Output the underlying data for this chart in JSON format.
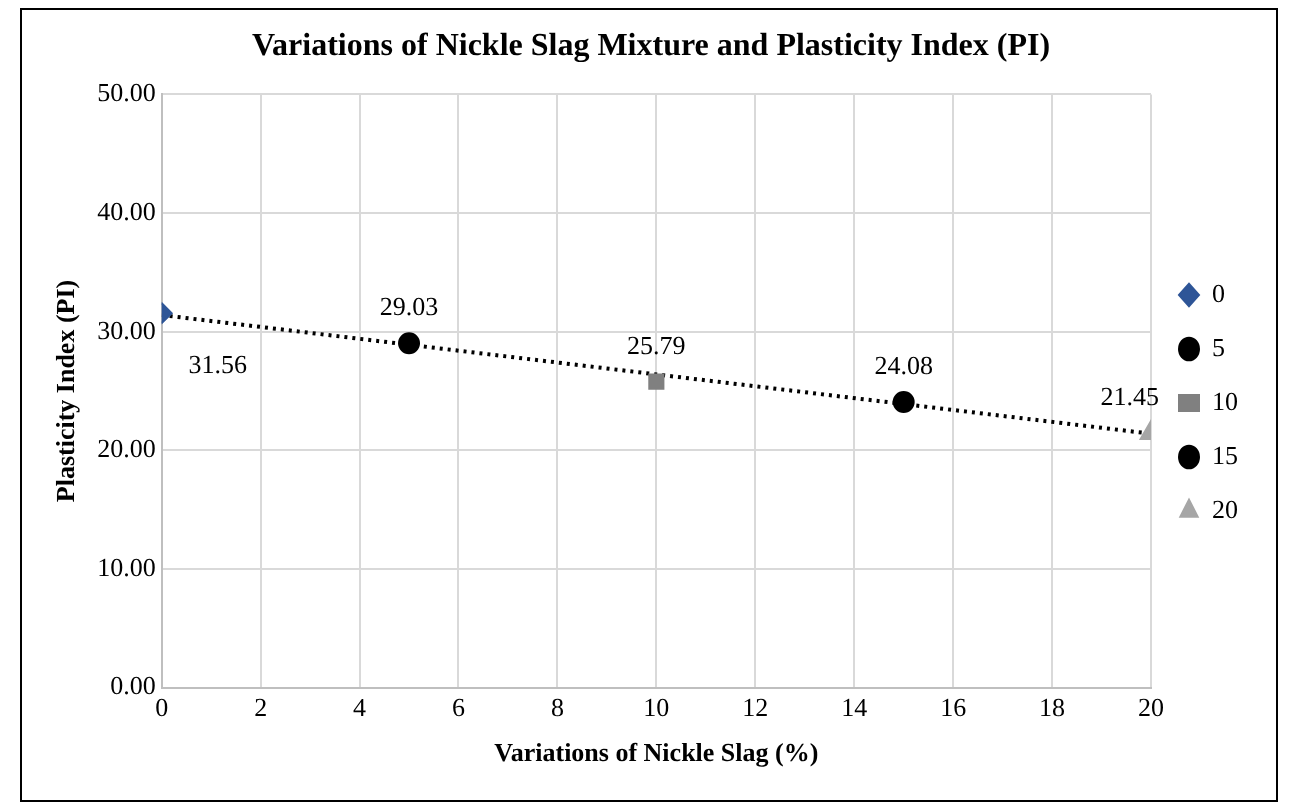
{
  "chart_data": {
    "type": "scatter",
    "title": "Variations of Nickle Slag Mixture and Plasticity Index (PI)",
    "xlabel": "Variations of Nickle Slag (%)",
    "ylabel": "Plasticity Index (PI)",
    "xlim": [
      0,
      20
    ],
    "xticks": [
      0,
      2,
      4,
      6,
      8,
      10,
      12,
      14,
      16,
      18,
      20
    ],
    "ylim": [
      0,
      50
    ],
    "yticks": [
      {
        "value": 0,
        "label": "0.00"
      },
      {
        "value": 10,
        "label": "10.00"
      },
      {
        "value": 20,
        "label": "20.00"
      },
      {
        "value": 30,
        "label": "30.00"
      },
      {
        "value": 40,
        "label": "40.00"
      },
      {
        "value": 50,
        "label": "50.00"
      }
    ],
    "grid": true,
    "legend": "right",
    "series": [
      {
        "name": "0",
        "color": "#2e5597",
        "marker": "diamond",
        "x": [
          0
        ],
        "values": [
          31.56
        ],
        "value_labels": [
          "31.56"
        ]
      },
      {
        "name": "5",
        "color": "#000000",
        "marker": "circle",
        "x": [
          5
        ],
        "values": [
          29.03
        ],
        "value_labels": [
          "29.03"
        ]
      },
      {
        "name": "10",
        "color": "#808080",
        "marker": "square",
        "x": [
          10
        ],
        "values": [
          25.79
        ],
        "value_labels": [
          "25.79"
        ]
      },
      {
        "name": "15",
        "color": "#000000",
        "marker": "circle",
        "x": [
          15
        ],
        "values": [
          24.08
        ],
        "value_labels": [
          "24.08"
        ]
      },
      {
        "name": "20",
        "color": "#a6a6a6",
        "marker": "triangle",
        "x": [
          20
        ],
        "values": [
          21.45
        ],
        "value_labels": [
          "21.45"
        ]
      },
      {
        "type": "line",
        "color": "#000000",
        "line_style": "dotted",
        "marker": "none",
        "x": [
          0,
          20
        ],
        "values": [
          31.4,
          21.4
        ]
      }
    ]
  }
}
